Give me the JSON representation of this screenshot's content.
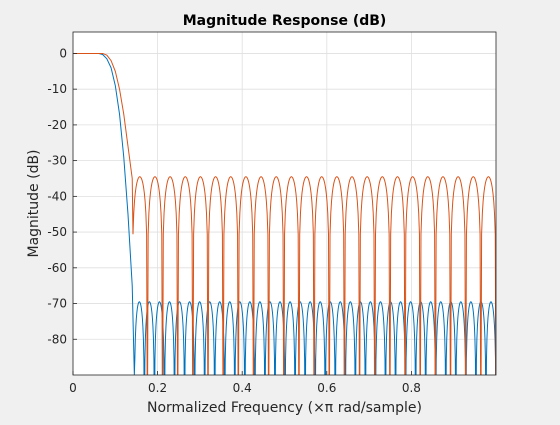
{
  "chart_data": {
    "type": "line",
    "title": "Magnitude Response (dB)",
    "xlabel": "Normalized Frequency (×π rad/sample)",
    "ylabel": "Magnitude (dB)",
    "xlim": [
      0,
      1
    ],
    "ylim": [
      -90,
      6
    ],
    "xticks": [
      0,
      0.2,
      0.4,
      0.6,
      0.8
    ],
    "xtick_labels": [
      "0",
      "0.2",
      "0.4",
      "0.6",
      "0.8"
    ],
    "yticks": [
      0,
      -10,
      -20,
      -30,
      -40,
      -50,
      -60,
      -70,
      -80
    ],
    "ytick_labels": [
      "0",
      "-10",
      "-20",
      "-30",
      "-40",
      "-50",
      "-60",
      "-70",
      "-80"
    ],
    "grid": true,
    "series": [
      {
        "color": "#0072BD",
        "passband_edge": 0.07,
        "stopband_edge": 0.145,
        "stopband_ripple_peak_db": -69.5,
        "stopband_lobes": 36,
        "points": [
          [
            0,
            0
          ],
          [
            0.06,
            0
          ],
          [
            0.07,
            -0.3
          ],
          [
            0.08,
            -1.5
          ],
          [
            0.09,
            -4
          ],
          [
            0.1,
            -9
          ],
          [
            0.11,
            -17
          ],
          [
            0.12,
            -29
          ],
          [
            0.13,
            -45
          ],
          [
            0.14,
            -65
          ],
          [
            0.145,
            -90
          ]
        ]
      },
      {
        "color": "#D95319",
        "passband_edge": 0.075,
        "stopband_edge": 0.14,
        "stopband_ripple_peak_db": -34.5,
        "stopband_lobes": 24,
        "points": [
          [
            0,
            0
          ],
          [
            0.07,
            0
          ],
          [
            0.08,
            -0.5
          ],
          [
            0.09,
            -2
          ],
          [
            0.1,
            -5
          ],
          [
            0.11,
            -10
          ],
          [
            0.12,
            -17
          ],
          [
            0.13,
            -26
          ],
          [
            0.14,
            -35
          ]
        ]
      }
    ]
  }
}
